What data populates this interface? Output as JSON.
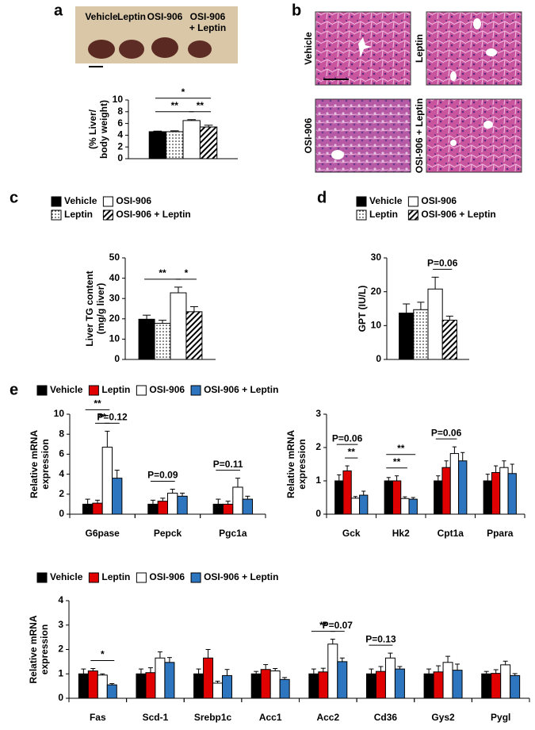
{
  "panel_labels": [
    "a",
    "b",
    "c",
    "d",
    "e"
  ],
  "photo": {
    "labels": [
      [
        "Vehicle"
      ],
      [
        "Leptin"
      ],
      [
        "OSI-906"
      ],
      [
        "OSI-906",
        "+ Leptin"
      ]
    ]
  },
  "histology": {
    "labels": [
      "Vehicle",
      "Leptin",
      "OSI-906",
      "OSI-906 + Leptin"
    ]
  },
  "chart_data": [
    {
      "type": "bar",
      "ylabel": [
        "(% Liver/",
        "body weight)"
      ],
      "categories": [
        null
      ],
      "ylim": [
        0,
        10
      ],
      "yticks": [
        0,
        2,
        4,
        6,
        8,
        10
      ],
      "legend_columns": 2,
      "series": [
        {
          "color": "#000000",
          "values": [
            4.6
          ],
          "errors": [
            0.1
          ]
        },
        {
          "color": "#ffffff",
          "pattern": "dots",
          "values": [
            4.6
          ],
          "errors": [
            0.15
          ]
        },
        {
          "color": "#ffffff",
          "values": [
            6.5
          ],
          "errors": [
            0.15
          ]
        },
        {
          "color": "#ffffff",
          "pattern": "hatch",
          "values": [
            5.4
          ],
          "errors": [
            0.3
          ]
        }
      ],
      "annotations": [
        {
          "text": "**",
          "category": 0,
          "series": [
            2,
            3
          ]
        },
        {
          "text": "**",
          "category": 0,
          "series": [
            0,
            2
          ]
        },
        {
          "text": "*",
          "category": 0,
          "series": [
            0,
            3
          ]
        }
      ]
    },
    {
      "type": "bar",
      "ylabel": [
        "Liver TG content",
        "(mg/g liver)"
      ],
      "categories": [
        null
      ],
      "ylim": [
        0,
        50
      ],
      "yticks": [
        0,
        10,
        20,
        30,
        40,
        50
      ],
      "legend_columns": 2,
      "series": [
        {
          "name": "Vehicle",
          "color": "#000000",
          "values": [
            19.8
          ],
          "errors": [
            2
          ]
        },
        {
          "name": "Leptin",
          "color": "#ffffff",
          "pattern": "dots",
          "values": [
            17.8
          ],
          "errors": [
            1.5
          ]
        },
        {
          "name": "OSI-906",
          "color": "#ffffff",
          "values": [
            32.8
          ],
          "errors": [
            2.8
          ]
        },
        {
          "name": "OSI-906 + Leptin",
          "color": "#ffffff",
          "pattern": "hatch",
          "values": [
            23.5
          ],
          "errors": [
            2.5
          ]
        }
      ],
      "annotations": [
        {
          "text": "*",
          "category": 0,
          "series": [
            2,
            3
          ]
        },
        {
          "text": "**",
          "category": 0,
          "series": [
            0,
            2
          ]
        }
      ]
    },
    {
      "type": "bar",
      "ylabel": [
        "GPT (IU/L)"
      ],
      "categories": [
        null
      ],
      "ylim": [
        0,
        30
      ],
      "yticks": [
        0,
        10,
        20,
        30
      ],
      "legend_columns": 2,
      "series": [
        {
          "name": "Vehicle",
          "color": "#000000",
          "values": [
            13.7
          ],
          "errors": [
            2.7
          ]
        },
        {
          "name": "Leptin",
          "color": "#ffffff",
          "pattern": "dots",
          "values": [
            14.7
          ],
          "errors": [
            2.2
          ]
        },
        {
          "name": "OSI-906",
          "color": "#ffffff",
          "values": [
            20.8
          ],
          "errors": [
            3.5
          ]
        },
        {
          "name": "OSI-906 + Leptin",
          "color": "#ffffff",
          "pattern": "hatch",
          "values": [
            11.6
          ],
          "errors": [
            1.2
          ]
        }
      ],
      "annotations": [
        {
          "text": "P=0.06",
          "category": 0,
          "series": [
            2,
            3
          ]
        }
      ]
    },
    {
      "type": "bar",
      "ylabel": [
        "Relative mRNA",
        "expression"
      ],
      "categories": [
        "G6pase",
        "Pepck",
        "Pgc1a"
      ],
      "ylim": [
        0,
        10
      ],
      "yticks": [
        0,
        2,
        4,
        6,
        8,
        10
      ],
      "legend_columns": 4,
      "series": [
        {
          "name": "Vehicle",
          "color": "#000000",
          "values": [
            1.0,
            1.0,
            1.0
          ],
          "errors": [
            0.5,
            0.4,
            0.5
          ]
        },
        {
          "name": "Leptin",
          "color": "#e00000",
          "values": [
            1.1,
            1.3,
            1.0
          ],
          "errors": [
            0.3,
            0.3,
            0.3
          ]
        },
        {
          "name": "OSI-906",
          "color": "#ffffff",
          "values": [
            6.7,
            2.1,
            2.7
          ],
          "errors": [
            1.6,
            0.4,
            0.9
          ]
        },
        {
          "name": "OSI-906 + Leptin",
          "color": "#2e75c0",
          "values": [
            3.6,
            1.8,
            1.5
          ],
          "errors": [
            0.8,
            0.3,
            0.3
          ]
        }
      ],
      "annotations": [
        {
          "text": "**",
          "category": 0,
          "series": [
            1,
            2
          ]
        },
        {
          "text": "P=0.12",
          "category": 0,
          "series": [
            2,
            3
          ]
        },
        {
          "text": "**",
          "category": 0,
          "series": [
            0,
            2
          ]
        },
        {
          "text": "P=0.09",
          "category": 1,
          "series": [
            0,
            2
          ]
        },
        {
          "text": "P=0.11",
          "category": 2,
          "series": [
            0,
            2
          ]
        }
      ]
    },
    {
      "type": "bar",
      "ylabel": [
        "Relative mRNA",
        "expression"
      ],
      "categories": [
        "Gck",
        "Hk2",
        "Cpt1a",
        "Ppara"
      ],
      "ylim": [
        0,
        3
      ],
      "yticks": [
        0,
        1,
        2,
        3
      ],
      "series": [
        {
          "color": "#000000",
          "values": [
            1.0,
            1.0,
            1.0,
            1.0
          ],
          "errors": [
            0.18,
            0.1,
            0.15,
            0.2
          ]
        },
        {
          "color": "#e00000",
          "values": [
            1.3,
            1.0,
            1.4,
            1.25
          ],
          "errors": [
            0.15,
            0.15,
            0.2,
            0.2
          ]
        },
        {
          "color": "#ffffff",
          "values": [
            0.48,
            0.47,
            1.82,
            1.4
          ],
          "errors": [
            0.05,
            0.05,
            0.2,
            0.2
          ]
        },
        {
          "color": "#2e75c0",
          "values": [
            0.57,
            0.45,
            1.6,
            1.22
          ],
          "errors": [
            0.12,
            0.05,
            0.25,
            0.28
          ]
        }
      ],
      "annotations": [
        {
          "text": "**",
          "category": 0,
          "series": [
            1,
            2
          ]
        },
        {
          "text": "P=0.06",
          "category": 0,
          "series": [
            0,
            2
          ]
        },
        {
          "text": "**",
          "category": 1,
          "series": [
            0,
            2
          ]
        },
        {
          "text": "**",
          "category": 1,
          "series": [
            0,
            3
          ]
        },
        {
          "text": "P=0.06",
          "category": 2,
          "series": [
            0,
            2
          ]
        }
      ]
    },
    {
      "type": "bar",
      "ylabel": [
        "Relative mRNA",
        "expression"
      ],
      "categories": [
        "Fas",
        "Scd-1",
        "Srebp1c",
        "Acc1",
        "Acc2",
        "Cd36",
        "Gys2",
        "Pygl"
      ],
      "ylim": [
        0,
        4
      ],
      "yticks": [
        0,
        1,
        2,
        3,
        4
      ],
      "legend_columns": 4,
      "series": [
        {
          "name": "Vehicle",
          "color": "#000000",
          "values": [
            1.0,
            1.0,
            1.0,
            1.0,
            1.0,
            1.0,
            1.0,
            1.0
          ],
          "errors": [
            0.2,
            0.2,
            0.2,
            0.1,
            0.2,
            0.2,
            0.2,
            0.1
          ]
        },
        {
          "name": "Leptin",
          "color": "#e00000",
          "values": [
            1.12,
            1.05,
            1.65,
            1.18,
            1.08,
            1.1,
            1.08,
            1.02
          ],
          "errors": [
            0.1,
            0.2,
            0.35,
            0.2,
            0.15,
            0.2,
            0.25,
            0.15
          ]
        },
        {
          "name": "OSI-906",
          "color": "#ffffff",
          "values": [
            0.95,
            1.65,
            0.62,
            1.12,
            2.22,
            1.65,
            1.47,
            1.37
          ],
          "errors": [
            0.05,
            0.25,
            0.08,
            0.1,
            0.2,
            0.2,
            0.25,
            0.15
          ]
        },
        {
          "name": "OSI-906 + Leptin",
          "color": "#2e75c0",
          "values": [
            0.55,
            1.47,
            0.93,
            0.77,
            1.5,
            1.2,
            1.15,
            0.93
          ],
          "errors": [
            0.05,
            0.2,
            0.25,
            0.08,
            0.15,
            0.1,
            0.25,
            0.08
          ]
        }
      ],
      "annotations": [
        {
          "text": "*",
          "category": 0,
          "series": [
            1,
            3
          ]
        },
        {
          "text": "**",
          "category": 4,
          "series": [
            0,
            2
          ]
        },
        {
          "text": "P=0.07",
          "category": 4,
          "series": [
            2,
            3
          ]
        },
        {
          "text": "P=0.13",
          "category": 5,
          "series": [
            0,
            2
          ]
        }
      ]
    }
  ]
}
